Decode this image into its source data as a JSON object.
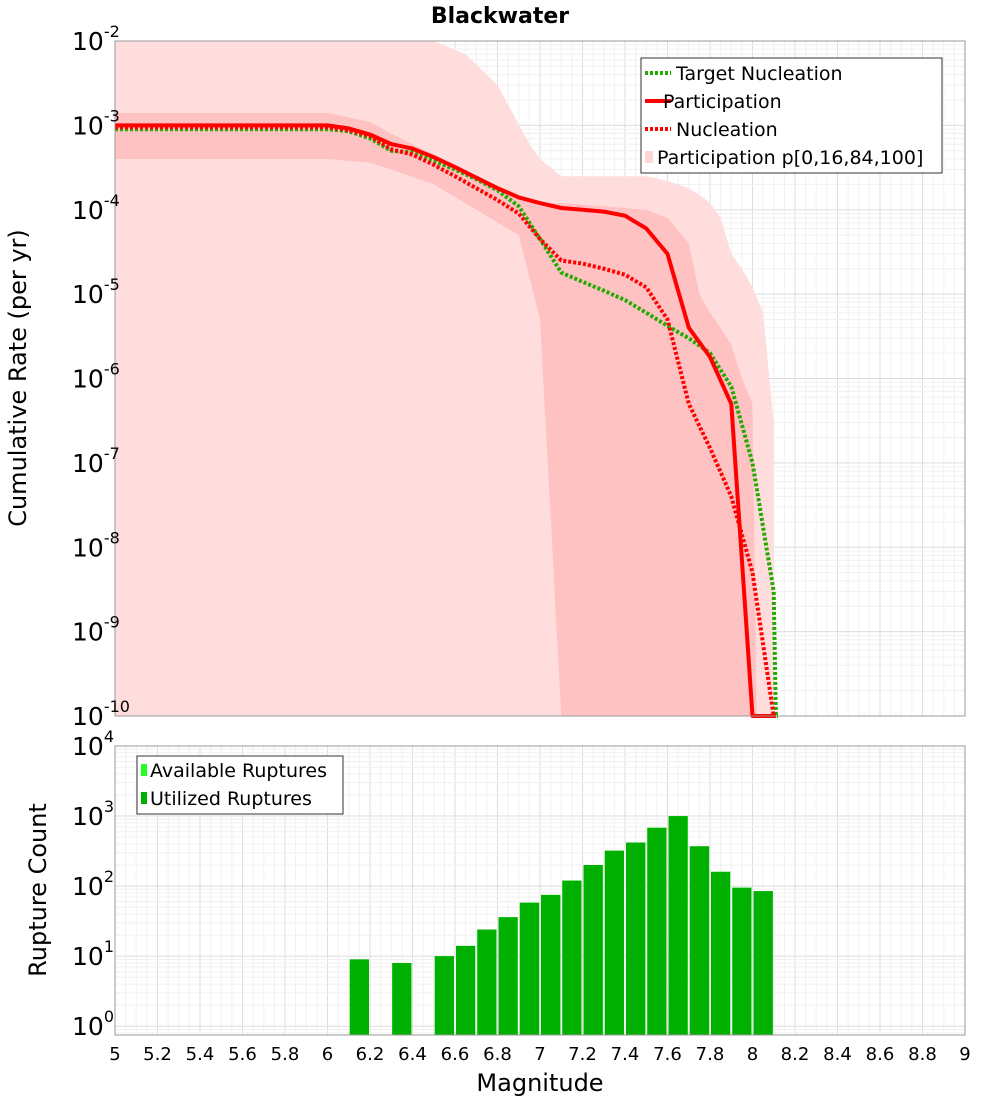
{
  "chart_data": [
    {
      "type": "line",
      "title": "Blackwater",
      "xlabel": "",
      "ylabel": "Cumulative Rate (per yr)",
      "xlim": [
        5,
        9
      ],
      "ylim": [
        1e-10,
        0.01
      ],
      "yscale": "log",
      "grid": true,
      "legend_position": "top-right",
      "ytick_labels": [
        {
          "value": 1e-10,
          "base": "10",
          "exp": "-10"
        },
        {
          "value": 1e-09,
          "base": "10",
          "exp": "-9"
        },
        {
          "value": 1e-08,
          "base": "10",
          "exp": "-8"
        },
        {
          "value": 1e-07,
          "base": "10",
          "exp": "-7"
        },
        {
          "value": 1e-06,
          "base": "10",
          "exp": "-6"
        },
        {
          "value": 1e-05,
          "base": "10",
          "exp": "-5"
        },
        {
          "value": 0.0001,
          "base": "10",
          "exp": "-4"
        },
        {
          "value": 0.001,
          "base": "10",
          "exp": "-3"
        },
        {
          "value": 0.01,
          "base": "10",
          "exp": "-2"
        }
      ],
      "bands": [
        {
          "name": "Participation p[0,16,84,100] (p0-p100)",
          "color": "#ffdddd",
          "x": [
            5.0,
            6.0,
            6.3,
            6.5,
            6.65,
            6.8,
            6.95,
            7.0,
            7.1,
            7.3,
            7.5,
            7.6,
            7.7,
            7.75,
            7.8,
            7.85,
            7.9,
            7.95,
            8.0,
            8.05,
            8.1
          ],
          "upper": [
            0.01,
            0.01,
            0.01,
            0.01,
            0.007,
            0.003,
            0.0006,
            0.0004,
            0.00025,
            0.00025,
            0.00025,
            0.00022,
            0.00018,
            0.00015,
            0.00012,
            8e-05,
            3e-05,
            2e-05,
            1.2e-05,
            6e-06,
            3e-07
          ],
          "lower": [
            1e-10,
            1e-10,
            1e-10,
            1e-10,
            1e-10,
            1e-10,
            1e-10,
            1e-10,
            1e-10,
            1e-10,
            1e-10,
            1e-10,
            1e-10,
            1e-10,
            1e-10,
            1e-10,
            1e-10,
            1e-10,
            1e-10,
            1e-10,
            1e-10
          ]
        },
        {
          "name": "Participation p[0,16,84,100] (p16-p84)",
          "color": "#ffc2c2",
          "x": [
            5.0,
            6.0,
            6.2,
            6.3,
            6.5,
            6.7,
            6.9,
            7.0,
            7.1,
            7.3,
            7.5,
            7.6,
            7.7,
            7.75,
            7.8,
            7.85,
            7.9,
            7.95,
            8.0,
            8.02
          ],
          "upper": [
            0.0014,
            0.0014,
            0.0011,
            0.0008,
            0.00045,
            0.00025,
            0.00015,
            0.00012,
            0.00012,
            0.00011,
            0.0001,
            8e-05,
            4e-05,
            1e-05,
            6e-06,
            4e-06,
            2.5e-06,
            1e-06,
            5e-07,
            1e-10
          ],
          "lower": [
            0.0004,
            0.0004,
            0.00036,
            0.0003,
            0.0002,
            0.0001,
            5e-05,
            5e-06,
            1e-10,
            1e-10,
            1e-10,
            1e-10,
            1e-10,
            1e-10,
            1e-10,
            1e-10,
            1e-10,
            1e-10,
            1e-10,
            1e-10
          ]
        }
      ],
      "series": [
        {
          "name": "Target Nucleation",
          "color": "#22aa00",
          "style": "dotted",
          "x": [
            5.0,
            6.0,
            6.1,
            6.2,
            6.3,
            6.4,
            6.5,
            6.6,
            6.7,
            6.8,
            6.9,
            7.0,
            7.1,
            7.2,
            7.3,
            7.4,
            7.5,
            7.6,
            7.7,
            7.8,
            7.9,
            8.0,
            8.1,
            8.11,
            8.12
          ],
          "y": [
            0.0009,
            0.0009,
            0.00085,
            0.0007,
            0.0005,
            0.00048,
            0.00038,
            0.0003,
            0.00023,
            0.00017,
            0.00011,
            4.5e-05,
            1.8e-05,
            1.4e-05,
            1.1e-05,
            8.5e-06,
            6e-06,
            4.2e-06,
            3e-06,
            2e-06,
            8e-07,
            1e-07,
            3e-09,
            1e-10,
            1e-10
          ]
        },
        {
          "name": "Participation",
          "color": "#ff0000",
          "style": "solid",
          "x": [
            5.0,
            6.0,
            6.1,
            6.2,
            6.3,
            6.4,
            6.5,
            6.6,
            6.7,
            6.8,
            6.9,
            7.0,
            7.1,
            7.2,
            7.3,
            7.4,
            7.5,
            7.6,
            7.7,
            7.8,
            7.9,
            8.0,
            8.1,
            8.11
          ],
          "y": [
            0.001,
            0.001,
            0.00092,
            0.00078,
            0.0006,
            0.00053,
            0.00042,
            0.00032,
            0.00024,
            0.00018,
            0.00014,
            0.00012,
            0.000105,
            0.0001,
            9.5e-05,
            8.5e-05,
            6e-05,
            3e-05,
            4e-06,
            1.8e-06,
            5e-07,
            1e-10,
            1e-10,
            1e-10
          ]
        },
        {
          "name": "Nucleation",
          "color": "#ff0000",
          "style": "dotted",
          "x": [
            5.0,
            6.0,
            6.1,
            6.2,
            6.3,
            6.4,
            6.5,
            6.6,
            6.7,
            6.8,
            6.9,
            7.0,
            7.1,
            7.2,
            7.3,
            7.4,
            7.5,
            7.6,
            7.7,
            7.8,
            7.9,
            8.0,
            8.1,
            8.11
          ],
          "y": [
            0.00095,
            0.00095,
            0.00088,
            0.00075,
            0.00052,
            0.00045,
            0.00034,
            0.00025,
            0.00018,
            0.00013,
            9e-05,
            4.5e-05,
            2.5e-05,
            2.3e-05,
            2e-05,
            1.7e-05,
            1.2e-05,
            5e-06,
            5e-07,
            1.5e-07,
            4e-08,
            5e-09,
            1e-10,
            1e-10
          ]
        }
      ],
      "legend": [
        {
          "label": "Target Nucleation",
          "color": "#22aa00",
          "style": "dotted"
        },
        {
          "label": "Participation",
          "color": "#ff0000",
          "style": "solid"
        },
        {
          "label": "Nucleation",
          "color": "#ff0000",
          "style": "dotted"
        },
        {
          "label": "Participation p[0,16,84,100]",
          "color": "#ffd6d6",
          "style": "box"
        }
      ]
    },
    {
      "type": "bar",
      "title": "",
      "xlabel": "Magnitude",
      "ylabel": "Rupture Count",
      "xlim": [
        5,
        9
      ],
      "ylim": [
        0.75,
        10000
      ],
      "yscale": "log",
      "grid": true,
      "legend_position": "top-left",
      "xtick_labels": [
        "5",
        "5.2",
        "5.4",
        "5.6",
        "5.8",
        "6",
        "6.2",
        "6.4",
        "6.6",
        "6.8",
        "7",
        "7.2",
        "7.4",
        "7.6",
        "7.8",
        "8",
        "8.2",
        "8.4",
        "8.6",
        "8.8",
        "9"
      ],
      "ytick_labels": [
        {
          "value": 1,
          "base": "10",
          "exp": "0"
        },
        {
          "value": 10,
          "base": "10",
          "exp": "1"
        },
        {
          "value": 100,
          "base": "10",
          "exp": "2"
        },
        {
          "value": 1000,
          "base": "10",
          "exp": "3"
        },
        {
          "value": 10000,
          "base": "10",
          "exp": "4"
        }
      ],
      "bar_width": 0.1,
      "series": [
        {
          "name": "Available Ruptures",
          "color": "#22ff22",
          "x": [
            6.15,
            6.35,
            6.55,
            6.65,
            6.75,
            6.85,
            6.95,
            7.05,
            7.15,
            7.25,
            7.35,
            7.45,
            7.55,
            7.65,
            7.75,
            7.85,
            7.95,
            8.05
          ],
          "values": [
            9,
            8,
            10,
            14,
            24,
            36,
            58,
            75,
            120,
            200,
            320,
            420,
            680,
            1000,
            370,
            160,
            95,
            85
          ]
        },
        {
          "name": "Utilized Ruptures",
          "color": "#00b000",
          "x": [
            6.15,
            6.35,
            6.55,
            6.65,
            6.75,
            6.85,
            6.95,
            7.05,
            7.15,
            7.25,
            7.35,
            7.45,
            7.55,
            7.65,
            7.75,
            7.85,
            7.95,
            8.05
          ],
          "values": [
            9,
            8,
            10,
            14,
            24,
            36,
            58,
            75,
            120,
            200,
            320,
            420,
            680,
            1000,
            370,
            160,
            95,
            85
          ]
        }
      ],
      "legend": [
        {
          "label": "Available Ruptures",
          "color": "#22ff22"
        },
        {
          "label": "Utilized Ruptures",
          "color": "#00b000"
        }
      ]
    }
  ]
}
